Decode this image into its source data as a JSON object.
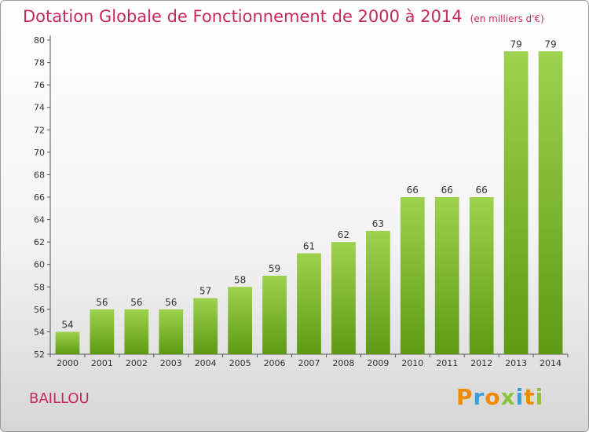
{
  "chart_data": {
    "type": "bar",
    "title": "Dotation Globale de Fonctionnement de 2000 à 2014",
    "subtitle": "(en milliers d'€)",
    "xlabel": "",
    "ylabel": "",
    "categories": [
      "2000",
      "2001",
      "2002",
      "2003",
      "2004",
      "2005",
      "2006",
      "2007",
      "2008",
      "2009",
      "2010",
      "2011",
      "2012",
      "2013",
      "2014"
    ],
    "values": [
      54,
      56,
      56,
      56,
      57,
      58,
      59,
      61,
      62,
      63,
      66,
      66,
      66,
      79,
      79
    ],
    "ylim": [
      52,
      80
    ],
    "yticks": [
      52,
      54,
      56,
      58,
      60,
      62,
      64,
      66,
      68,
      70,
      72,
      74,
      76,
      78,
      80
    ],
    "grid": false,
    "legend": "none",
    "colors": {
      "bar_light": "#9ed24e",
      "bar_dark": "#5e9a14",
      "title": "#c8285a",
      "axis": "#555555",
      "text": "#333333"
    }
  },
  "place": {
    "name": "BAILLOU"
  },
  "brand": {
    "letters": [
      {
        "char": "P",
        "color": "#f08a00"
      },
      {
        "char": "r",
        "color": "#3b9ed8"
      },
      {
        "char": "o",
        "color": "#f08a00"
      },
      {
        "char": "x",
        "color": "#8cc23e"
      },
      {
        "char": "i",
        "color": "#3b9ed8"
      },
      {
        "char": "t",
        "color": "#f08a00"
      },
      {
        "char": "i",
        "color": "#8cc23e"
      }
    ]
  }
}
